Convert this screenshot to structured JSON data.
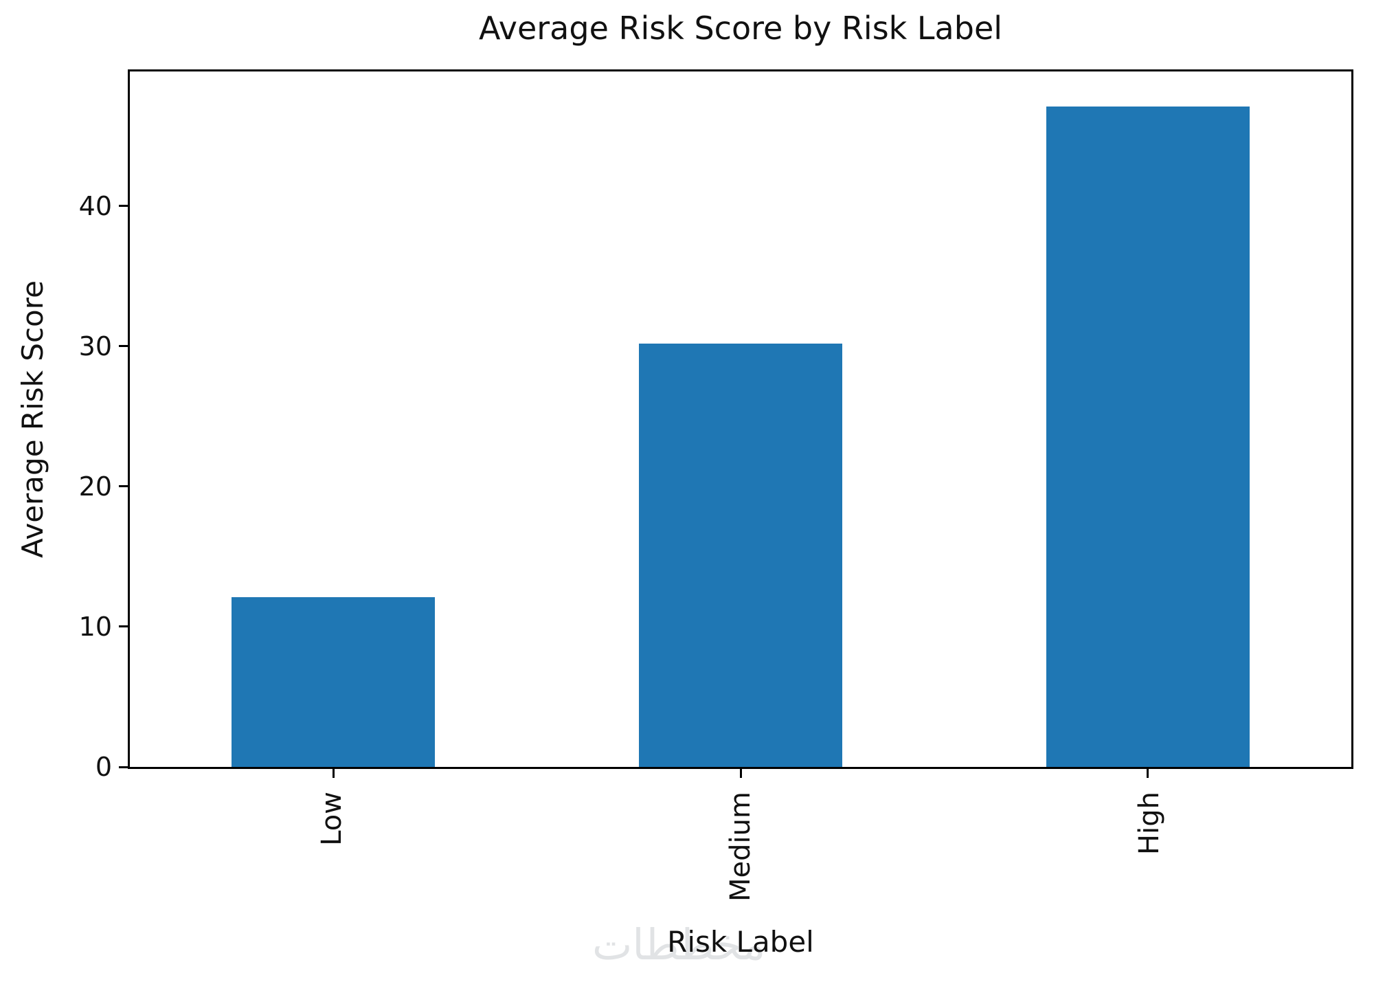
{
  "figure": {
    "title": "Average Risk Score by Risk Label",
    "xlabel": "Risk Label",
    "ylabel": "Average Risk Score",
    "watermark_text": "مخططات"
  },
  "chart_data": {
    "type": "bar",
    "title": "Average Risk Score by Risk Label",
    "xlabel": "Risk Label",
    "ylabel": "Average Risk Score",
    "categories": [
      "Low",
      "Medium",
      "High"
    ],
    "values": [
      12.1,
      30.2,
      47.1
    ],
    "yticks": [
      0,
      10,
      20,
      30,
      40
    ],
    "ylim": [
      0,
      49.6
    ],
    "bar_color": "#1f77b4",
    "bar_width_fraction": 0.5,
    "x_tick_rotation": 90,
    "grid": false,
    "legend": false
  }
}
